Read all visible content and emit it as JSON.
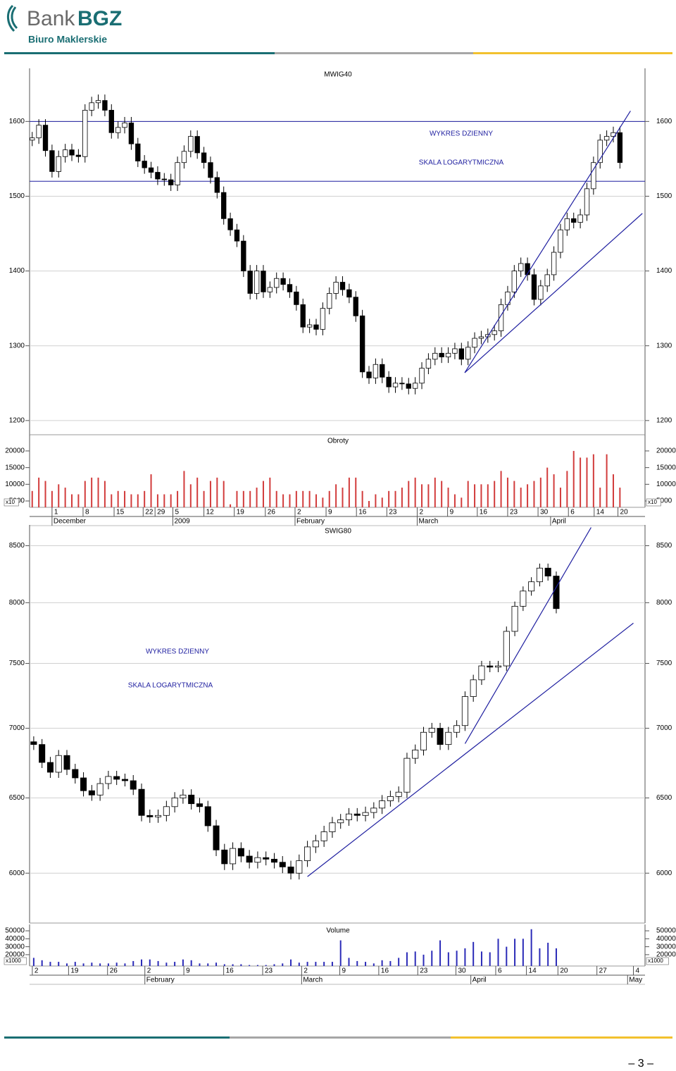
{
  "header": {
    "brand": "Bank",
    "brand_bold": "BGZ",
    "subtitle": "Biuro Maklerskie"
  },
  "page_number": "– 3 –",
  "chart_data": [
    {
      "type": "candlestick",
      "title": "MWIG40",
      "open": [
        1575,
        1578,
        1595,
        1561,
        1533,
        1553,
        1562,
        1555,
        1553,
        1615,
        1625,
        1628,
        1615,
        1585,
        1592,
        1598,
        1570,
        1547,
        1538,
        1532,
        1523,
        1522,
        1515,
        1545,
        1560,
        1580,
        1558,
        1545,
        1525,
        1505,
        1470,
        1455,
        1440,
        1400,
        1370,
        1400,
        1372,
        1378,
        1390,
        1382,
        1372,
        1355,
        1325,
        1328,
        1322,
        1350,
        1370,
        1385,
        1375,
        1365,
        1340,
        1265,
        1257,
        1275,
        1258,
        1245,
        1250,
        1249,
        1243,
        1250,
        1270,
        1282,
        1290,
        1285,
        1290,
        1296,
        1282,
        1298,
        1310,
        1312,
        1315,
        1320,
        1355,
        1372,
        1400,
        1410,
        1395,
        1362,
        1380,
        1395,
        1425,
        1455,
        1470,
        1465,
        1475,
        1510,
        1545,
        1575,
        1580,
        1585
      ],
      "high": [
        1586,
        1603,
        1603,
        1569,
        1561,
        1570,
        1570,
        1563,
        1623,
        1633,
        1636,
        1636,
        1623,
        1600,
        1606,
        1606,
        1578,
        1555,
        1546,
        1540,
        1531,
        1530,
        1553,
        1568,
        1588,
        1588,
        1566,
        1553,
        1533,
        1513,
        1478,
        1463,
        1448,
        1408,
        1408,
        1408,
        1386,
        1398,
        1398,
        1390,
        1380,
        1363,
        1336,
        1336,
        1358,
        1378,
        1393,
        1393,
        1383,
        1373,
        1348,
        1273,
        1283,
        1283,
        1266,
        1258,
        1258,
        1257,
        1258,
        1278,
        1290,
        1298,
        1298,
        1298,
        1304,
        1304,
        1306,
        1318,
        1320,
        1323,
        1328,
        1363,
        1380,
        1408,
        1418,
        1418,
        1403,
        1388,
        1403,
        1433,
        1463,
        1478,
        1478,
        1483,
        1518,
        1553,
        1583,
        1588,
        1593,
        1593
      ],
      "low": [
        1567,
        1570,
        1553,
        1525,
        1525,
        1545,
        1547,
        1545,
        1545,
        1607,
        1617,
        1607,
        1577,
        1577,
        1584,
        1562,
        1539,
        1530,
        1524,
        1515,
        1514,
        1507,
        1507,
        1537,
        1552,
        1550,
        1537,
        1517,
        1497,
        1462,
        1447,
        1432,
        1392,
        1362,
        1362,
        1364,
        1364,
        1370,
        1374,
        1364,
        1347,
        1317,
        1317,
        1314,
        1314,
        1342,
        1362,
        1367,
        1357,
        1332,
        1257,
        1249,
        1249,
        1250,
        1237,
        1237,
        1241,
        1235,
        1235,
        1242,
        1262,
        1274,
        1277,
        1277,
        1282,
        1274,
        1274,
        1290,
        1302,
        1304,
        1307,
        1312,
        1347,
        1364,
        1392,
        1387,
        1354,
        1354,
        1372,
        1387,
        1417,
        1447,
        1457,
        1457,
        1467,
        1502,
        1537,
        1567,
        1572,
        1537
      ],
      "close": [
        1578,
        1595,
        1561,
        1533,
        1553,
        1562,
        1555,
        1553,
        1615,
        1625,
        1628,
        1615,
        1585,
        1592,
        1598,
        1570,
        1547,
        1538,
        1532,
        1523,
        1522,
        1515,
        1545,
        1560,
        1580,
        1558,
        1545,
        1525,
        1505,
        1470,
        1455,
        1440,
        1400,
        1370,
        1400,
        1372,
        1378,
        1390,
        1382,
        1372,
        1355,
        1325,
        1328,
        1322,
        1350,
        1370,
        1385,
        1375,
        1365,
        1340,
        1265,
        1257,
        1275,
        1258,
        1245,
        1250,
        1249,
        1243,
        1250,
        1270,
        1282,
        1290,
        1285,
        1290,
        1296,
        1282,
        1298,
        1310,
        1312,
        1315,
        1320,
        1355,
        1372,
        1400,
        1410,
        1395,
        1362,
        1380,
        1395,
        1425,
        1455,
        1470,
        1465,
        1475,
        1510,
        1545,
        1575,
        1580,
        1585,
        1545
      ],
      "xlim": [
        -0.4,
        92.8
      ],
      "ylim": [
        1181,
        1671
      ],
      "yticks": [
        1200,
        1300,
        1400,
        1500,
        1600
      ],
      "grid": true,
      "hlines": [
        1600,
        1520
      ],
      "line_color": "#1f1fa0",
      "trendlines": [
        {
          "x": [
            65.5,
            90.6
          ],
          "y": [
            1264,
            1614
          ]
        },
        {
          "x": [
            65.5,
            92.4
          ],
          "y": [
            1264,
            1477
          ]
        }
      ],
      "annotations": [
        "WYKRES DZIENNY",
        "SKALA LOGARYTMICZNA"
      ]
    },
    {
      "type": "bar",
      "title": "Obroty",
      "color": "#d23c3c",
      "scale_label": "x10",
      "values": [
        8000,
        12000,
        11000,
        8000,
        10000,
        9000,
        7000,
        7000,
        11000,
        12000,
        12000,
        11000,
        7000,
        8000,
        8000,
        7000,
        7000,
        8000,
        13000,
        7000,
        7000,
        7000,
        8000,
        14000,
        10000,
        12000,
        8000,
        11000,
        12000,
        11000,
        4000,
        8000,
        8000,
        8000,
        9000,
        11000,
        12000,
        8000,
        7000,
        7000,
        8000,
        8000,
        8000,
        7000,
        6000,
        8000,
        10000,
        9000,
        12000,
        12000,
        8000,
        5000,
        7000,
        6000,
        8000,
        8000,
        9000,
        11000,
        12000,
        10000,
        10000,
        12000,
        11000,
        9000,
        7000,
        6000,
        11000,
        10000,
        10000,
        10000,
        11000,
        14000,
        12000,
        11000,
        9000,
        10000,
        11000,
        12000,
        15000,
        13000,
        9000,
        14000,
        20000,
        18000,
        18000,
        19000,
        9000,
        19000,
        13000,
        9000
      ],
      "xlim": [
        -0.4,
        92.8
      ],
      "ylim": [
        3100,
        24850
      ],
      "yticks": [
        5000,
        10000,
        15000,
        20000
      ],
      "xticks": [
        {
          "value": 3.0,
          "label": "1"
        },
        {
          "value": 7.7,
          "label": "8"
        },
        {
          "value": 12.4,
          "label": "15"
        },
        {
          "value": 16.8,
          "label": "22"
        },
        {
          "value": 18.6,
          "label": "29"
        },
        {
          "value": 21.3,
          "label": "5"
        },
        {
          "value": 26.0,
          "label": "12"
        },
        {
          "value": 30.6,
          "label": "19"
        },
        {
          "value": 35.3,
          "label": "26"
        },
        {
          "value": 39.8,
          "label": "2"
        },
        {
          "value": 44.5,
          "label": "9"
        },
        {
          "value": 49.1,
          "label": "16"
        },
        {
          "value": 53.7,
          "label": "23"
        },
        {
          "value": 58.3,
          "label": "2"
        },
        {
          "value": 62.9,
          "label": "9"
        },
        {
          "value": 67.4,
          "label": "16"
        },
        {
          "value": 72.0,
          "label": "23"
        },
        {
          "value": 76.6,
          "label": "30"
        },
        {
          "value": 81.2,
          "label": "6"
        },
        {
          "value": 85.1,
          "label": "14"
        },
        {
          "value": 88.7,
          "label": "20"
        }
      ],
      "month_ticks": [
        {
          "value": 3.0,
          "label": "December"
        },
        {
          "value": 21.3,
          "label": "2009"
        },
        {
          "value": 39.8,
          "label": "February"
        },
        {
          "value": 58.3,
          "label": "March"
        },
        {
          "value": 78.5,
          "label": "April"
        }
      ]
    },
    {
      "type": "candlestick",
      "title": "SWIG80",
      "log": true,
      "open": [
        6900,
        6880,
        6750,
        6680,
        6800,
        6700,
        6640,
        6550,
        6520,
        6600,
        6650,
        6630,
        6620,
        6560,
        6380,
        6370,
        6380,
        6440,
        6500,
        6520,
        6460,
        6440,
        6310,
        6150,
        6060,
        6160,
        6110,
        6070,
        6100,
        6090,
        6070,
        6040,
        6000,
        6080,
        6170,
        6210,
        6270,
        6330,
        6350,
        6390,
        6380,
        6400,
        6430,
        6480,
        6510,
        6540,
        6780,
        6840,
        6970,
        7000,
        6880,
        6970,
        7020,
        7240,
        7370,
        7480,
        7470,
        7480,
        7760,
        7970,
        8100,
        8180,
        8300,
        8230
      ],
      "high": [
        6940,
        6920,
        6790,
        6840,
        6840,
        6740,
        6680,
        6590,
        6640,
        6690,
        6690,
        6670,
        6660,
        6600,
        6420,
        6420,
        6480,
        6540,
        6560,
        6560,
        6500,
        6480,
        6350,
        6190,
        6200,
        6200,
        6150,
        6140,
        6140,
        6130,
        6110,
        6080,
        6120,
        6210,
        6250,
        6310,
        6370,
        6390,
        6430,
        6430,
        6440,
        6470,
        6520,
        6550,
        6580,
        6820,
        6880,
        7010,
        7040,
        7040,
        7010,
        7060,
        7280,
        7410,
        7520,
        7520,
        7520,
        7800,
        8010,
        8140,
        8220,
        8340,
        8340,
        8270
      ],
      "low": [
        6840,
        6710,
        6640,
        6640,
        6660,
        6600,
        6510,
        6480,
        6480,
        6560,
        6590,
        6580,
        6520,
        6340,
        6330,
        6330,
        6340,
        6400,
        6460,
        6420,
        6400,
        6270,
        6110,
        6020,
        6020,
        6070,
        6030,
        6030,
        6050,
        6030,
        6000,
        5960,
        5960,
        6040,
        6130,
        6170,
        6230,
        6290,
        6310,
        6340,
        6340,
        6360,
        6390,
        6440,
        6470,
        6500,
        6740,
        6800,
        6930,
        6840,
        6840,
        6930,
        6980,
        7200,
        7330,
        7430,
        7430,
        7440,
        7720,
        7930,
        8060,
        8140,
        8190,
        7910
      ],
      "close": [
        6880,
        6750,
        6680,
        6800,
        6700,
        6640,
        6550,
        6520,
        6600,
        6650,
        6630,
        6620,
        6560,
        6380,
        6370,
        6380,
        6440,
        6500,
        6520,
        6460,
        6440,
        6310,
        6150,
        6060,
        6160,
        6110,
        6070,
        6100,
        6090,
        6070,
        6040,
        6000,
        6080,
        6170,
        6210,
        6270,
        6330,
        6350,
        6390,
        6380,
        6400,
        6430,
        6480,
        6510,
        6540,
        6780,
        6840,
        6970,
        7000,
        6880,
        6970,
        7020,
        7240,
        7370,
        7480,
        7470,
        7480,
        7760,
        7970,
        8100,
        8180,
        8300,
        8230,
        7950
      ],
      "xlim": [
        -0.5,
        73.7
      ],
      "ylim": [
        5690,
        8690
      ],
      "yticks": [
        6000,
        6500,
        7000,
        7500,
        8000,
        8500
      ],
      "grid": true,
      "line_color": "#1f1fa0",
      "trendlines": [
        {
          "x": [
            52.0,
            67.2
          ],
          "y": [
            6886,
            8667
          ]
        },
        {
          "x": [
            33.0,
            72.3
          ],
          "y": [
            5978,
            7828
          ]
        }
      ],
      "annotations": [
        "WYKRES DZIENNY",
        "SKALA LOGARYTMICZNA"
      ]
    },
    {
      "type": "bar",
      "title": "Volume",
      "color": "#2b2bb8",
      "scale_label": "x1000",
      "values": [
        16000,
        13000,
        11000,
        11000,
        9000,
        11000,
        9000,
        10000,
        9000,
        9000,
        10000,
        9000,
        12000,
        14000,
        14000,
        12000,
        10000,
        11000,
        14000,
        13000,
        9000,
        9000,
        10000,
        8000,
        8000,
        8000,
        7000,
        7000,
        7000,
        8000,
        9000,
        14000,
        10000,
        11000,
        11000,
        11000,
        11000,
        38000,
        16000,
        12000,
        11000,
        9000,
        13000,
        12000,
        16000,
        23000,
        24000,
        20000,
        25000,
        38000,
        23000,
        25000,
        28000,
        36000,
        24000,
        23000,
        40000,
        30000,
        40000,
        40000,
        52000,
        28000,
        35000,
        28000
      ],
      "xlim": [
        -0.5,
        73.7
      ],
      "ylim": [
        5750,
        58000
      ],
      "yticks": [
        20000,
        30000,
        40000,
        50000
      ],
      "xticks": [
        {
          "value": -0.17,
          "label": "2"
        },
        {
          "value": 4.2,
          "label": "19"
        },
        {
          "value": 8.9,
          "label": "26"
        },
        {
          "value": 13.4,
          "label": "2"
        },
        {
          "value": 18.1,
          "label": "9"
        },
        {
          "value": 22.9,
          "label": "16"
        },
        {
          "value": 27.6,
          "label": "23"
        },
        {
          "value": 32.3,
          "label": "2"
        },
        {
          "value": 36.9,
          "label": "9"
        },
        {
          "value": 41.6,
          "label": "16"
        },
        {
          "value": 46.3,
          "label": "23"
        },
        {
          "value": 50.9,
          "label": "30"
        },
        {
          "value": 55.7,
          "label": "6"
        },
        {
          "value": 59.4,
          "label": "14"
        },
        {
          "value": 63.2,
          "label": "20"
        },
        {
          "value": 67.9,
          "label": "27"
        },
        {
          "value": 72.3,
          "label": "4"
        }
      ],
      "month_ticks": [
        {
          "value": 13.4,
          "label": "February"
        },
        {
          "value": 32.3,
          "label": "March"
        },
        {
          "value": 52.7,
          "label": "April"
        },
        {
          "value": 71.6,
          "label": "May"
        }
      ]
    }
  ]
}
